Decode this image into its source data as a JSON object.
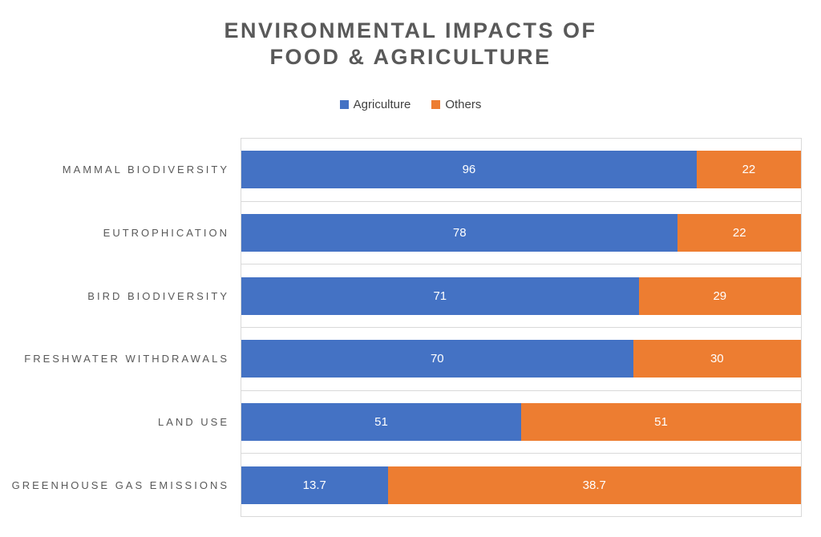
{
  "title": {
    "line1": "ENVIRONMENTAL IMPACTS OF",
    "line2": "FOOD & AGRICULTURE"
  },
  "legend": [
    {
      "label": "Agriculture",
      "color": "#4472C4"
    },
    {
      "label": "Others",
      "color": "#ED7D31"
    }
  ],
  "colors": {
    "agriculture": "#4472C4",
    "others": "#ED7D31",
    "gridline": "#D9D9D9",
    "title_text": "#595959",
    "category_text": "#595959",
    "value_text": "#FFFFFF"
  },
  "chart_data": {
    "type": "bar",
    "orientation": "horizontal",
    "stacking": "100% stacked (each row normalized to its own total)",
    "title": "ENVIRONMENTAL IMPACTS OF FOOD & AGRICULTURE",
    "legend_position": "top",
    "gridlines": "between-categories",
    "value_labels": "centered inside segments",
    "categories": [
      "MAMMAL BIODIVERSITY",
      "EUTROPHICATION",
      "BIRD BIODIVERSITY",
      "FRESHWATER WITHDRAWALS",
      "LAND USE",
      "GREENHOUSE GAS EMISSIONS"
    ],
    "series": [
      {
        "name": "Agriculture",
        "color": "#4472C4",
        "values": [
          96,
          78,
          71,
          70,
          51,
          13.7
        ]
      },
      {
        "name": "Others",
        "color": "#ED7D31",
        "values": [
          22,
          22,
          29,
          30,
          51,
          38.7
        ]
      }
    ]
  }
}
